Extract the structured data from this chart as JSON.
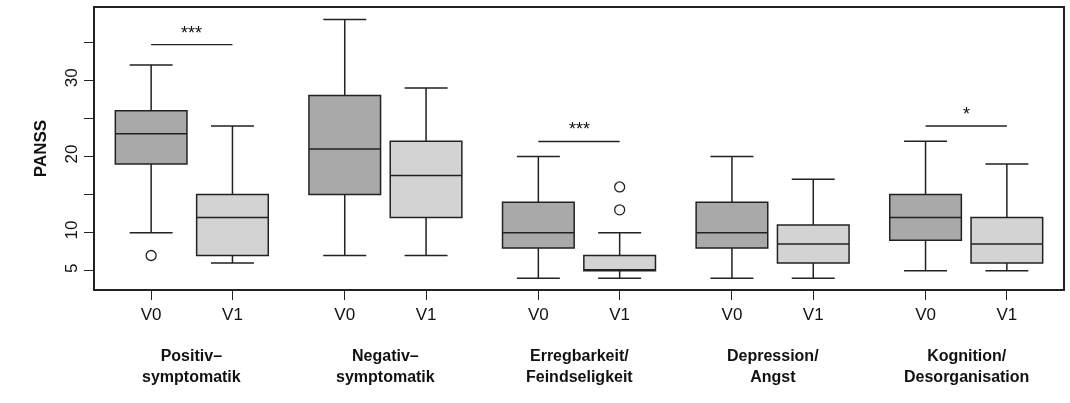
{
  "chart_data": {
    "type": "box",
    "ylabel": "PANSS",
    "categories": [
      "Positiv–\nsymptomatik",
      "Negativ–\nsymptomatik",
      "Erregbarkeit/\nFeindseligkeit",
      "Depression/\nAngst",
      "Kognition/\nDesorganisation"
    ],
    "series": [
      {
        "name": "V0",
        "color": "#a9a9a9",
        "boxes": [
          {
            "low": 10,
            "q1": 19,
            "median": 23,
            "q3": 26,
            "high": 32,
            "outliers": [
              7
            ]
          },
          {
            "low": 7,
            "q1": 15,
            "median": 21,
            "q3": 28,
            "high": 38
          },
          {
            "low": 4,
            "q1": 8,
            "median": 10,
            "q3": 14,
            "high": 20
          },
          {
            "low": 4,
            "q1": 8,
            "median": 10,
            "q3": 14,
            "high": 20
          },
          {
            "low": 5,
            "q1": 9,
            "median": 12,
            "q3": 15,
            "high": 22
          }
        ]
      },
      {
        "name": "V1",
        "color": "#d3d3d3",
        "boxes": [
          {
            "low": 6,
            "q1": 7,
            "median": 12,
            "q3": 15,
            "high": 24
          },
          {
            "low": 7,
            "q1": 12,
            "median": 17.5,
            "q3": 22,
            "high": 29
          },
          {
            "low": 4,
            "q1": 5,
            "median": 5,
            "q3": 7,
            "high": 10,
            "outliers": [
              13,
              16
            ]
          },
          {
            "low": 4,
            "q1": 6,
            "median": 8.5,
            "q3": 11,
            "high": 17
          },
          {
            "low": 5,
            "q1": 6,
            "median": 8.5,
            "q3": 12,
            "high": 19
          }
        ]
      }
    ],
    "ylim": [
      2.6,
      39.5
    ],
    "yticks": [
      5,
      10,
      {
        "value": 15,
        "label": null
      },
      20,
      {
        "value": 25,
        "label": null
      },
      30,
      {
        "value": 35,
        "label": null
      }
    ],
    "annotations": [
      "***",
      "***",
      "*"
    ],
    "legend": "bottom"
  }
}
